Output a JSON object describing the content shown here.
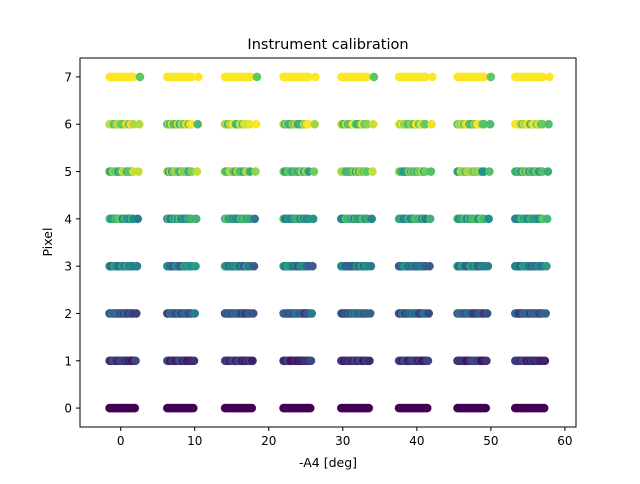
{
  "chart_data": {
    "type": "scatter",
    "title": "Instrument calibration",
    "xlabel": "-A4 [deg]",
    "ylabel": "Pixel",
    "xlim": [
      -5.5,
      61.5
    ],
    "ylim": [
      -0.4,
      7.4
    ],
    "x_ticks": [
      0,
      10,
      20,
      30,
      40,
      50,
      60
    ],
    "y_ticks": [
      0,
      1,
      2,
      3,
      4,
      5,
      6,
      7
    ],
    "grid": false,
    "legend": "none",
    "colormap": "viridis",
    "color_range": [
      0,
      7
    ],
    "pixels": [
      0,
      1,
      2,
      3,
      4,
      5,
      6,
      7
    ],
    "detector_groups": [
      {
        "x_start": -1.5,
        "x_end": 1.9
      },
      {
        "x_start": 6.3,
        "x_end": 9.8
      },
      {
        "x_start": 14.1,
        "x_end": 17.7
      },
      {
        "x_start": 22.0,
        "x_end": 25.6
      },
      {
        "x_start": 29.8,
        "x_end": 33.5
      },
      {
        "x_start": 37.6,
        "x_end": 41.4
      },
      {
        "x_start": 45.5,
        "x_end": 49.3
      },
      {
        "x_start": 53.3,
        "x_end": 57.2
      }
    ],
    "points_per_group": 18,
    "pixel_spread_deg": [
      0.0,
      0.1,
      0.2,
      0.3,
      0.4,
      0.5,
      0.6,
      0.7
    ],
    "colors": {
      "c0": "#440154",
      "c1": "#3b528b",
      "c2": "#21918c",
      "c3": "#5ec962",
      "c4": "#fde725"
    }
  }
}
